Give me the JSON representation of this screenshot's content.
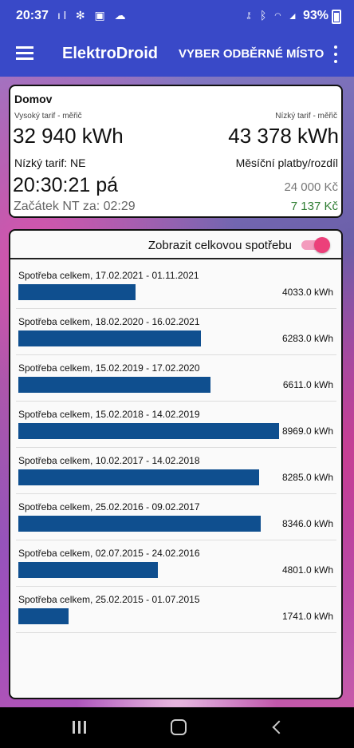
{
  "status_bar": {
    "time": "20:37",
    "left_icons": [
      "signal-bars-icon",
      "fan-icon",
      "image-icon",
      "cloud-icon"
    ],
    "right_icons": [
      "key-icon",
      "bluetooth-icon",
      "wifi-icon",
      "cell-signal-icon"
    ],
    "battery": "93%"
  },
  "app_bar": {
    "title": "ElektroDroid",
    "action_label": "VYBER ODBĚRNÉ MÍSTO"
  },
  "summary": {
    "place": "Domov",
    "high_tariff_label": "Vysoký tarif - měřič",
    "low_tariff_label": "Nízký tarif - měřič",
    "high_tariff_value": "32 940 kWh",
    "low_tariff_value": "43 378 kWh",
    "low_tariff_state": "Nízký tarif: NE",
    "monthly_label": "Měsíční platby/rozdíl",
    "clock": "20:30:21 pá",
    "payments": "24 000 Kč",
    "nt_start": "Začátek NT za: 02:29",
    "difference": "7 137 Kč"
  },
  "consumption": {
    "toggle_label": "Zobrazit celkovou spotřebu",
    "toggle_on": true,
    "bar_color": "#0f4f8f",
    "max_value": 8969.0,
    "items": [
      {
        "label": "Spotřeba celkem, 17.02.2021 - 01.11.2021",
        "value": 4033.0,
        "value_text": "4033.0 kWh"
      },
      {
        "label": "Spotřeba celkem, 18.02.2020 - 16.02.2021",
        "value": 6283.0,
        "value_text": "6283.0 kWh"
      },
      {
        "label": "Spotřeba celkem, 15.02.2019 - 17.02.2020",
        "value": 6611.0,
        "value_text": "6611.0 kWh"
      },
      {
        "label": "Spotřeba celkem, 15.02.2018 - 14.02.2019",
        "value": 8969.0,
        "value_text": "8969.0 kWh"
      },
      {
        "label": "Spotřeba celkem, 10.02.2017 - 14.02.2018",
        "value": 8285.0,
        "value_text": "8285.0 kWh"
      },
      {
        "label": "Spotřeba celkem, 25.02.2016 - 09.02.2017",
        "value": 8346.0,
        "value_text": "8346.0 kWh"
      },
      {
        "label": "Spotřeba celkem, 02.07.2015 - 24.02.2016",
        "value": 4801.0,
        "value_text": "4801.0 kWh"
      },
      {
        "label": "Spotřeba celkem, 25.02.2015 - 01.07.2015",
        "value": 1741.0,
        "value_text": "1741.0 kWh"
      }
    ]
  },
  "nav_bar": {
    "icons": [
      "recent-apps-icon",
      "home-icon",
      "back-icon"
    ]
  }
}
